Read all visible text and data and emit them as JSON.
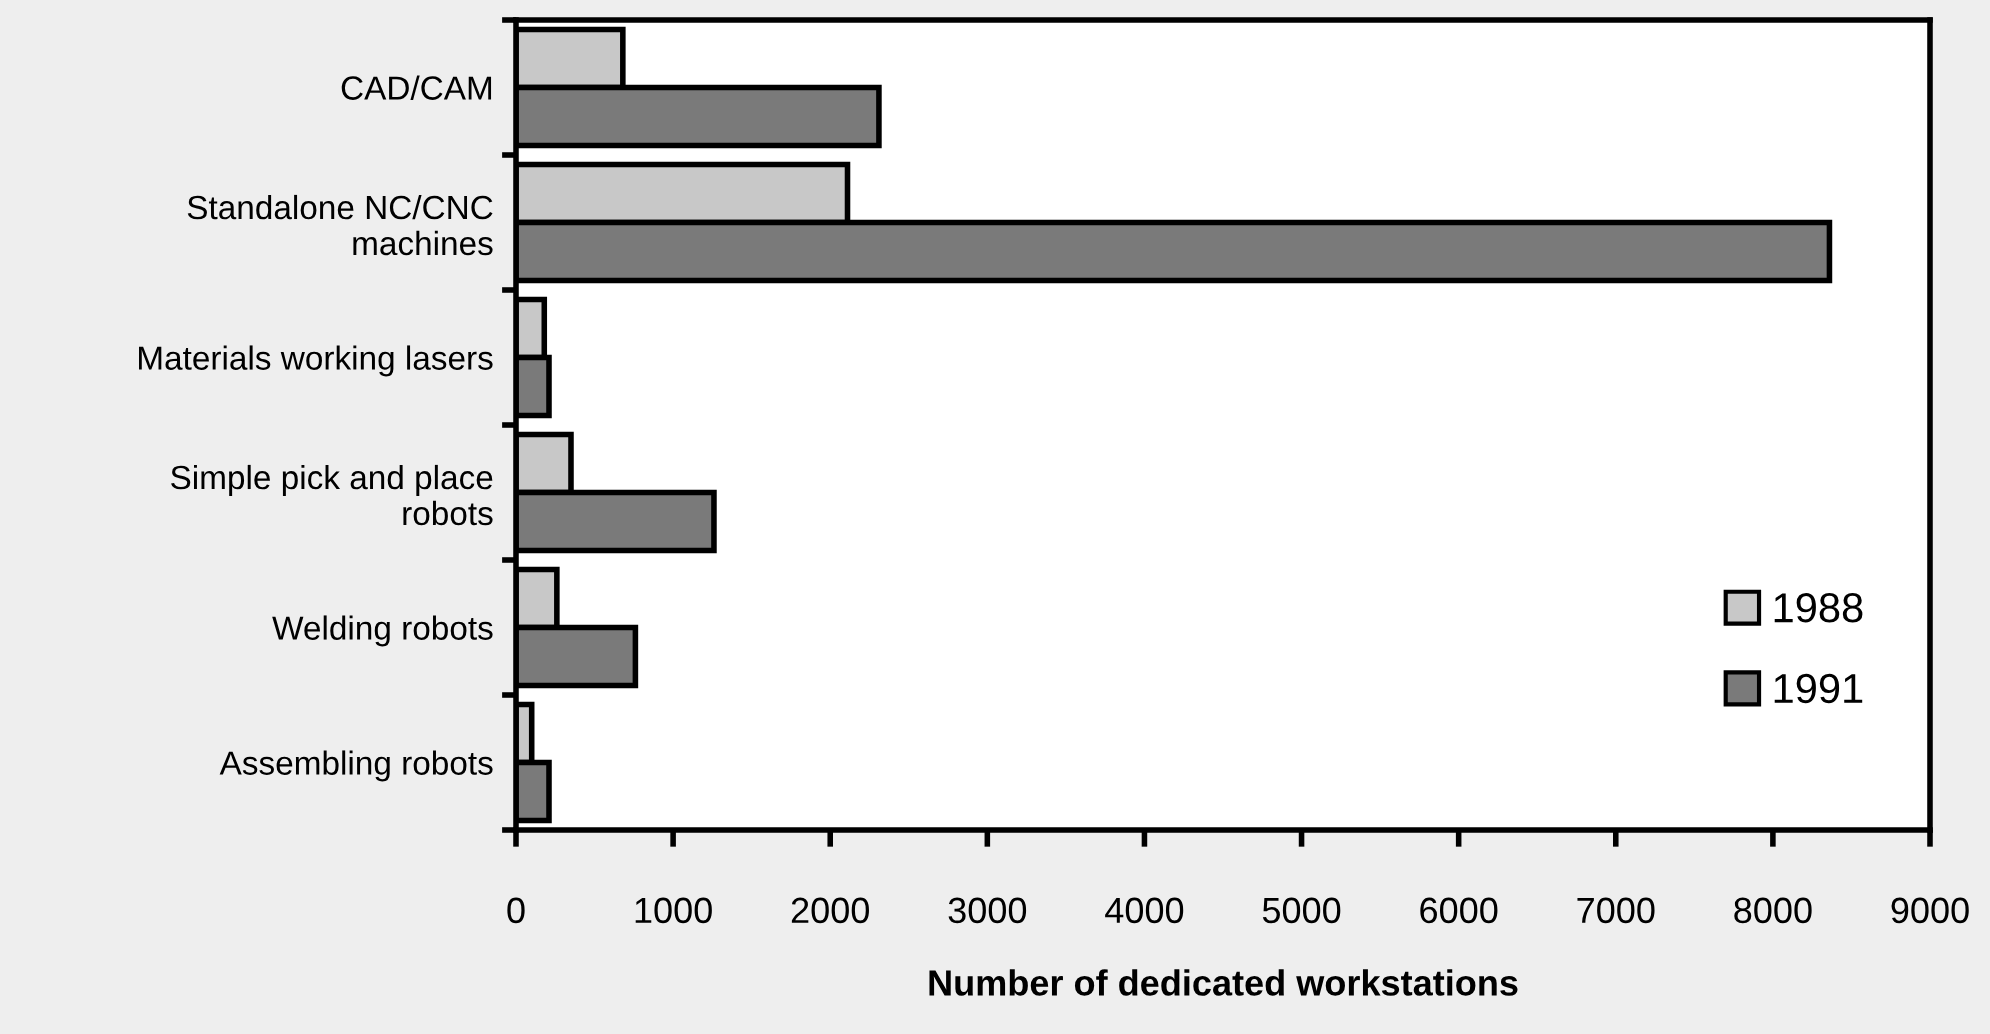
{
  "chart_data": {
    "type": "bar",
    "orientation": "horizontal",
    "xlabel": "Number of dedicated workstations",
    "categories": [
      "CAD/CAM",
      "Standalone NC/CNC\nmachines",
      "Materials working lasers",
      "Simple pick and place\nrobots",
      "Welding robots",
      "Assembling robots"
    ],
    "series": [
      {
        "name": "1988",
        "color": "#c8c8c8",
        "values": [
          680,
          2110,
          180,
          350,
          260,
          100
        ]
      },
      {
        "name": "1991",
        "color": "#7a7a7a",
        "values": [
          2310,
          8360,
          210,
          1260,
          760,
          210
        ]
      }
    ],
    "xlim": [
      0,
      9000
    ],
    "xticks": [
      0,
      1000,
      2000,
      3000,
      4000,
      5000,
      6000,
      7000,
      8000,
      9000
    ],
    "grid": false,
    "legend": "bottom right"
  }
}
